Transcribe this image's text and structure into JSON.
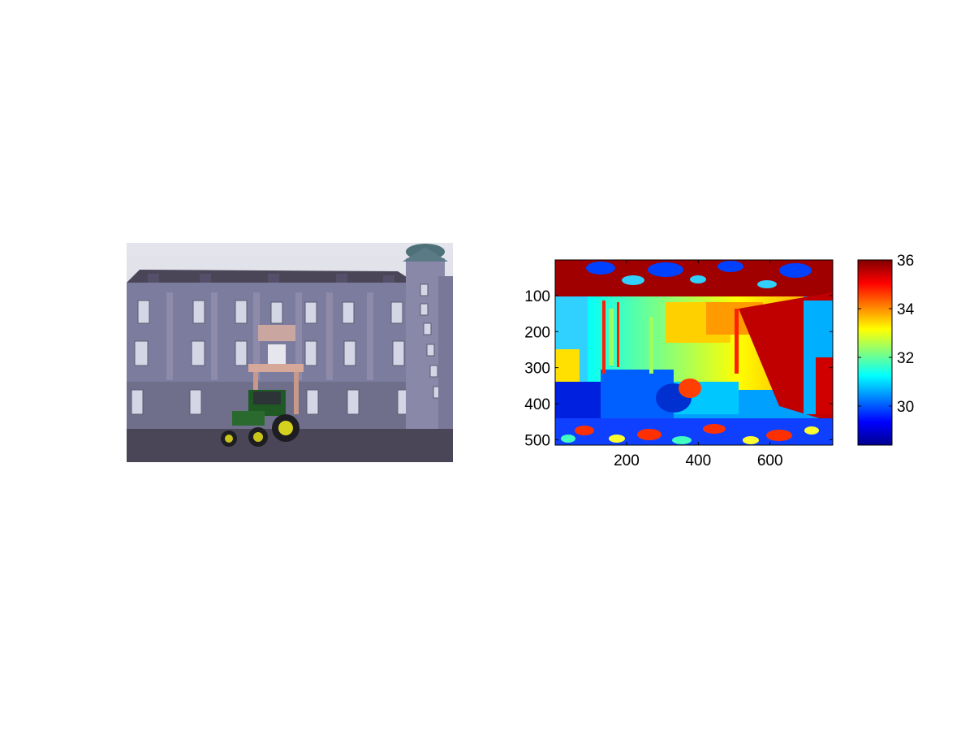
{
  "figure": {
    "left_panel": {
      "type": "photo",
      "description_icon": "building-with-tractor-photo"
    },
    "chart_data": {
      "type": "heatmap",
      "title": "",
      "xlabel": "",
      "ylabel": "",
      "xlim": [
        1,
        775
      ],
      "ylim": [
        1,
        515
      ],
      "y_reversed": true,
      "x_ticks": [
        200,
        400,
        600
      ],
      "x_tick_labels": [
        "200",
        "400",
        "600"
      ],
      "y_ticks": [
        100,
        200,
        300,
        400,
        500
      ],
      "y_tick_labels": [
        "100",
        "200",
        "300",
        "400",
        "500"
      ],
      "colormap": "jet",
      "colorbar": {
        "range": [
          28.4,
          36.0
        ],
        "ticks": [
          30,
          32,
          34,
          36
        ],
        "tick_labels": [
          "30",
          "32",
          "34",
          "36"
        ]
      }
    }
  }
}
